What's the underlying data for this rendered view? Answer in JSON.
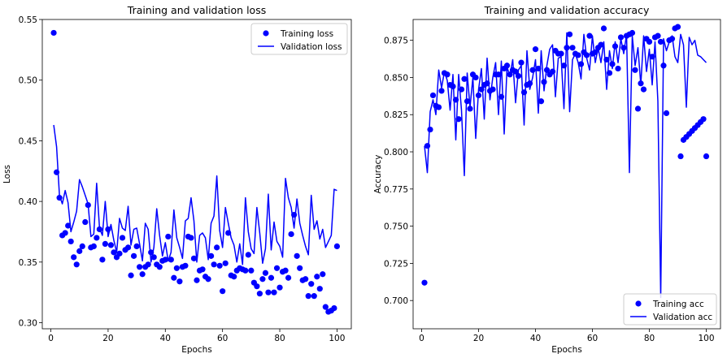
{
  "chart_data": [
    {
      "type": "line",
      "title": "Training and validation loss",
      "xlabel": "Epochs",
      "ylabel": "Loss",
      "xlim": [
        -3,
        105
      ],
      "ylim": [
        0.295,
        0.55
      ],
      "xticks": [
        0,
        20,
        40,
        60,
        80,
        100
      ],
      "yticks": [
        0.3,
        0.35,
        0.4,
        0.45,
        0.5,
        0.55
      ],
      "ytick_format": 2,
      "legend_position": "top-right",
      "grid": false,
      "series": [
        {
          "name": "Training loss",
          "style": "markers",
          "color": "#0000ff",
          "x": [
            1,
            2,
            3,
            4,
            5,
            6,
            7,
            8,
            9,
            10,
            11,
            12,
            13,
            14,
            15,
            16,
            17,
            18,
            19,
            20,
            21,
            22,
            23,
            24,
            25,
            26,
            27,
            28,
            29,
            30,
            31,
            32,
            33,
            34,
            35,
            36,
            37,
            38,
            39,
            40,
            41,
            42,
            43,
            44,
            45,
            46,
            47,
            48,
            49,
            50,
            51,
            52,
            53,
            54,
            55,
            56,
            57,
            58,
            59,
            60,
            61,
            62,
            63,
            64,
            65,
            66,
            67,
            68,
            69,
            70,
            71,
            72,
            73,
            74,
            75,
            76,
            77,
            78,
            79,
            80,
            81,
            82,
            83,
            84,
            85,
            86,
            87,
            88,
            89,
            90,
            91,
            92,
            93,
            94,
            95,
            96,
            97,
            98,
            99,
            100
          ],
          "y": [
            0.539,
            0.424,
            0.403,
            0.372,
            0.374,
            0.38,
            0.367,
            0.354,
            0.348,
            0.359,
            0.363,
            0.383,
            0.397,
            0.362,
            0.363,
            0.37,
            0.377,
            0.352,
            0.365,
            0.377,
            0.364,
            0.358,
            0.354,
            0.357,
            0.37,
            0.36,
            0.362,
            0.339,
            0.355,
            0.363,
            0.346,
            0.34,
            0.346,
            0.348,
            0.358,
            0.354,
            0.348,
            0.346,
            0.351,
            0.352,
            0.371,
            0.352,
            0.337,
            0.345,
            0.334,
            0.346,
            0.347,
            0.371,
            0.37,
            0.353,
            0.335,
            0.343,
            0.344,
            0.338,
            0.336,
            0.355,
            0.348,
            0.362,
            0.347,
            0.326,
            0.349,
            0.374,
            0.339,
            0.338,
            0.343,
            0.345,
            0.344,
            0.343,
            0.356,
            0.343,
            0.333,
            0.33,
            0.324,
            0.336,
            0.341,
            0.325,
            0.337,
            0.325,
            0.345,
            0.329,
            0.342,
            0.343,
            0.337,
            0.373,
            0.389,
            0.355,
            0.345,
            0.335,
            0.336,
            0.322,
            0.332,
            0.322,
            0.338,
            0.328,
            0.34,
            0.313,
            0.309,
            0.31,
            0.312,
            0.363
          ]
        },
        {
          "name": "Validation loss",
          "style": "line",
          "color": "#0000ff",
          "x": [
            1,
            2,
            3,
            4,
            5,
            6,
            7,
            8,
            9,
            10,
            11,
            12,
            13,
            14,
            15,
            16,
            17,
            18,
            19,
            20,
            21,
            22,
            23,
            24,
            25,
            26,
            27,
            28,
            29,
            30,
            31,
            32,
            33,
            34,
            35,
            36,
            37,
            38,
            39,
            40,
            41,
            42,
            43,
            44,
            45,
            46,
            47,
            48,
            49,
            50,
            51,
            52,
            53,
            54,
            55,
            56,
            57,
            58,
            59,
            60,
            61,
            62,
            63,
            64,
            65,
            66,
            67,
            68,
            69,
            70,
            71,
            72,
            73,
            74,
            75,
            76,
            77,
            78,
            79,
            80,
            81,
            82,
            83,
            84,
            85,
            86,
            87,
            88,
            89,
            90,
            91,
            92,
            93,
            94,
            95,
            96,
            97,
            98,
            99,
            100
          ],
          "y": [
            0.463,
            0.445,
            0.405,
            0.398,
            0.409,
            0.399,
            0.375,
            0.383,
            0.392,
            0.418,
            0.412,
            0.405,
            0.398,
            0.371,
            0.373,
            0.415,
            0.378,
            0.372,
            0.4,
            0.371,
            0.381,
            0.368,
            0.358,
            0.386,
            0.378,
            0.376,
            0.396,
            0.364,
            0.377,
            0.378,
            0.365,
            0.351,
            0.382,
            0.377,
            0.35,
            0.362,
            0.394,
            0.372,
            0.355,
            0.366,
            0.351,
            0.358,
            0.393,
            0.37,
            0.362,
            0.353,
            0.384,
            0.386,
            0.403,
            0.384,
            0.35,
            0.372,
            0.374,
            0.37,
            0.352,
            0.382,
            0.388,
            0.421,
            0.376,
            0.362,
            0.395,
            0.382,
            0.37,
            0.364,
            0.35,
            0.365,
            0.348,
            0.403,
            0.375,
            0.361,
            0.357,
            0.395,
            0.374,
            0.349,
            0.361,
            0.406,
            0.36,
            0.383,
            0.367,
            0.363,
            0.354,
            0.419,
            0.403,
            0.395,
            0.378,
            0.402,
            0.382,
            0.372,
            0.363,
            0.356,
            0.405,
            0.377,
            0.384,
            0.369,
            0.377,
            0.362,
            0.367,
            0.372,
            0.41,
            0.409
          ]
        }
      ]
    },
    {
      "type": "line",
      "title": "Training and validation accuracy",
      "xlabel": "Epochs",
      "ylabel": "Accuracy",
      "xlim": [
        -3,
        105
      ],
      "ylim": [
        0.681,
        0.889
      ],
      "xticks": [
        0,
        20,
        40,
        60,
        80,
        100
      ],
      "yticks": [
        0.7,
        0.725,
        0.75,
        0.775,
        0.8,
        0.825,
        0.85,
        0.875
      ],
      "ytick_format": 3,
      "legend_position": "bottom-right",
      "grid": false,
      "series": [
        {
          "name": "Training acc",
          "style": "markers",
          "color": "#0000ff",
          "x": [
            1,
            2,
            3,
            4,
            5,
            6,
            7,
            8,
            9,
            10,
            11,
            12,
            13,
            14,
            15,
            16,
            17,
            18,
            19,
            20,
            21,
            22,
            23,
            24,
            25,
            26,
            27,
            28,
            29,
            30,
            31,
            32,
            33,
            34,
            35,
            36,
            37,
            38,
            39,
            40,
            41,
            42,
            43,
            44,
            45,
            46,
            47,
            48,
            49,
            50,
            51,
            52,
            53,
            54,
            55,
            56,
            57,
            58,
            59,
            60,
            61,
            62,
            63,
            64,
            65,
            66,
            67,
            68,
            69,
            70,
            71,
            72,
            73,
            74,
            75,
            76,
            77,
            78,
            79,
            80,
            81,
            82,
            83,
            84,
            85,
            86,
            87,
            88,
            89,
            90,
            91,
            92,
            93,
            94,
            95,
            96,
            97,
            98,
            99,
            100
          ],
          "y": [
            0.712,
            0.804,
            0.815,
            0.838,
            0.831,
            0.83,
            0.841,
            0.853,
            0.852,
            0.845,
            0.844,
            0.835,
            0.822,
            0.842,
            0.849,
            0.834,
            0.829,
            0.852,
            0.85,
            0.838,
            0.842,
            0.845,
            0.846,
            0.841,
            0.842,
            0.852,
            0.852,
            0.837,
            0.856,
            0.858,
            0.852,
            0.855,
            0.854,
            0.851,
            0.86,
            0.84,
            0.845,
            0.846,
            0.855,
            0.869,
            0.856,
            0.834,
            0.847,
            0.855,
            0.852,
            0.854,
            0.868,
            0.866,
            0.866,
            0.858,
            0.87,
            0.879,
            0.87,
            0.866,
            0.865,
            0.859,
            0.867,
            0.865,
            0.878,
            0.866,
            0.867,
            0.87,
            0.872,
            0.883,
            0.862,
            0.853,
            0.859,
            0.871,
            0.856,
            0.877,
            0.87,
            0.878,
            0.879,
            0.88,
            0.855,
            0.829,
            0.846,
            0.842,
            0.876,
            0.874,
            0.864,
            0.877,
            0.878,
            0.874,
            0.858,
            0.826,
            0.875,
            0.876,
            0.883,
            0.884,
            0.797,
            0.808,
            0.81,
            0.812,
            0.814,
            0.816,
            0.818,
            0.82,
            0.822,
            0.797
          ]
        },
        {
          "name": "Validation acc",
          "style": "line",
          "color": "#0000ff",
          "x": [
            1,
            2,
            3,
            4,
            5,
            6,
            7,
            8,
            9,
            10,
            11,
            12,
            13,
            14,
            15,
            16,
            17,
            18,
            19,
            20,
            21,
            22,
            23,
            24,
            25,
            26,
            27,
            28,
            29,
            30,
            31,
            32,
            33,
            34,
            35,
            36,
            37,
            38,
            39,
            40,
            41,
            42,
            43,
            44,
            45,
            46,
            47,
            48,
            49,
            50,
            51,
            52,
            53,
            54,
            55,
            56,
            57,
            58,
            59,
            60,
            61,
            62,
            63,
            64,
            65,
            66,
            67,
            68,
            69,
            70,
            71,
            72,
            73,
            74,
            75,
            76,
            77,
            78,
            79,
            80,
            81,
            82,
            83,
            84,
            85,
            86,
            87,
            88,
            89,
            90,
            91,
            92,
            93,
            94,
            95,
            96,
            97,
            98,
            99,
            100
          ],
          "y": [
            0.804,
            0.786,
            0.827,
            0.835,
            0.825,
            0.855,
            0.843,
            0.854,
            0.848,
            0.828,
            0.852,
            0.808,
            0.852,
            0.828,
            0.784,
            0.853,
            0.83,
            0.85,
            0.809,
            0.842,
            0.856,
            0.822,
            0.863,
            0.835,
            0.85,
            0.86,
            0.825,
            0.861,
            0.812,
            0.857,
            0.851,
            0.862,
            0.833,
            0.855,
            0.858,
            0.818,
            0.868,
            0.842,
            0.85,
            0.862,
            0.826,
            0.868,
            0.841,
            0.858,
            0.869,
            0.872,
            0.837,
            0.863,
            0.864,
            0.829,
            0.88,
            0.827,
            0.862,
            0.866,
            0.86,
            0.849,
            0.879,
            0.863,
            0.855,
            0.878,
            0.86,
            0.87,
            0.86,
            0.874,
            0.842,
            0.868,
            0.856,
            0.874,
            0.86,
            0.876,
            0.866,
            0.879,
            0.786,
            0.878,
            0.858,
            0.87,
            0.845,
            0.878,
            0.854,
            0.869,
            0.845,
            0.874,
            0.834,
            0.702,
            0.876,
            0.868,
            0.874,
            0.878,
            0.864,
            0.86,
            0.879,
            0.872,
            0.83,
            0.877,
            0.872,
            0.875,
            0.865,
            0.864,
            0.862,
            0.86
          ]
        }
      ]
    }
  ]
}
